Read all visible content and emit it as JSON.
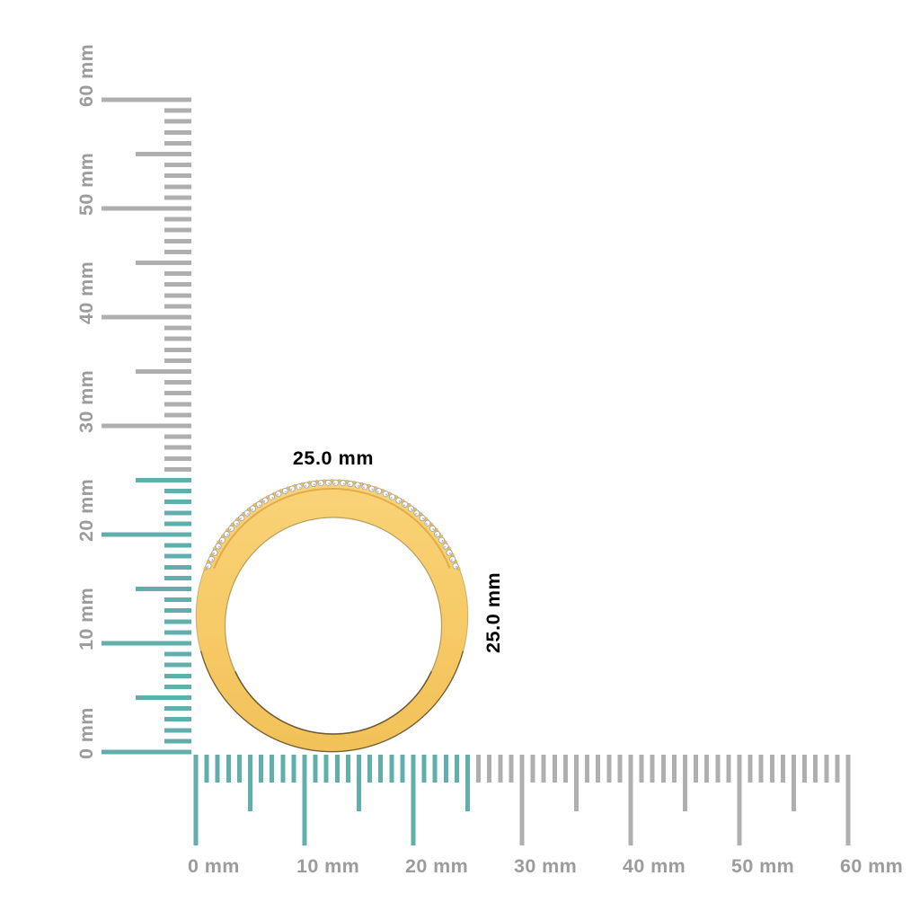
{
  "figure": {
    "subject": "gold-diamond-ring-front-view",
    "width_label": "25.0 mm",
    "height_label": "25.0 mm",
    "object_width_mm": 25.0,
    "object_height_mm": 25.0
  },
  "rulers": {
    "unit": "mm",
    "range_mm": [
      0,
      60
    ],
    "minor_step_mm": 1,
    "medium_step_mm": 5,
    "major_step_mm": 10,
    "highlight_limit_mm": 25,
    "vertical_labels": [
      "0 mm",
      "10 mm",
      "20 mm",
      "30 mm",
      "40 mm",
      "50 mm",
      "60 mm"
    ],
    "horizontal_labels": [
      "0 mm",
      "10 mm",
      "20 mm",
      "30 mm",
      "40 mm",
      "50 mm",
      "60 mm"
    ],
    "colors": {
      "highlight": "#61AFAD",
      "normal": "#AFAFAF",
      "label": "#9C9C9C"
    }
  },
  "ring": {
    "diamond_count": 44,
    "diamond_arc_start_deg": 22,
    "diamond_arc_end_deg": 158,
    "colors": {
      "gold": "#F6CA66",
      "gold_light": "#F9D378",
      "gold_dark": "#E2AC4A",
      "prong": "#EFBE55",
      "diamond": "#FBFBFE",
      "diamond_edge": "#9AA3B1",
      "shadow_edge": "rgba(45,33,8,0.55)",
      "label": "#9C9C9C"
    }
  }
}
